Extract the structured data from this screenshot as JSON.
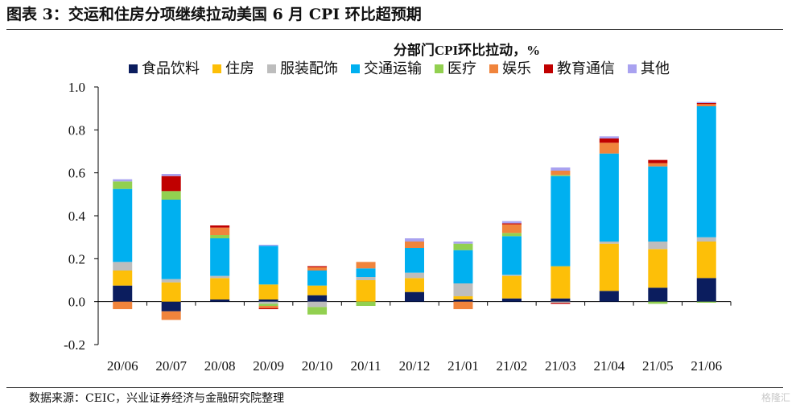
{
  "figure_title": "图表 3：交运和住房分项继续拉动美国 6 月 CPI 环比超预期",
  "source_note": "数据来源：CEIC，兴业证券经济与金融研究院整理",
  "watermark": "格隆汇",
  "chart_data": {
    "type": "bar",
    "stacked": true,
    "title": "分部门CPI环比拉动，%",
    "xlabel": "",
    "ylabel": "",
    "ylim": [
      -0.2,
      1.0
    ],
    "yticks": [
      "-0.2",
      "0.0",
      "0.2",
      "0.4",
      "0.6",
      "0.8",
      "1.0"
    ],
    "grid": false,
    "legend_position": "top",
    "categories": [
      "20/06",
      "20/07",
      "20/08",
      "20/09",
      "20/10",
      "20/11",
      "20/12",
      "21/01",
      "21/02",
      "21/03",
      "21/04",
      "21/05",
      "21/06"
    ],
    "series": [
      {
        "name": "食品饮料",
        "color": "#0b1d5e",
        "values": [
          0.075,
          -0.045,
          0.01,
          0.01,
          0.03,
          0.0,
          0.045,
          0.01,
          0.015,
          0.015,
          0.05,
          0.065,
          0.11
        ]
      },
      {
        "name": "住房",
        "color": "#fdbf08",
        "values": [
          0.07,
          0.09,
          0.1,
          0.07,
          0.045,
          0.1,
          0.065,
          0.015,
          0.105,
          0.15,
          0.22,
          0.18,
          0.17
        ]
      },
      {
        "name": "服装配饰",
        "color": "#bdbdbd",
        "values": [
          0.04,
          0.015,
          0.01,
          -0.01,
          -0.025,
          0.015,
          0.025,
          0.06,
          0.005,
          -0.005,
          0.01,
          0.035,
          0.02
        ]
      },
      {
        "name": "交通运输",
        "color": "#00b0f0",
        "values": [
          0.34,
          0.37,
          0.175,
          0.18,
          0.07,
          0.04,
          0.115,
          0.155,
          0.18,
          0.42,
          0.41,
          0.35,
          0.61
        ]
      },
      {
        "name": "医疗",
        "color": "#92d050",
        "values": [
          0.035,
          0.04,
          0.015,
          -0.01,
          -0.035,
          -0.02,
          0.0,
          0.03,
          0.015,
          0.005,
          0.0,
          -0.01,
          -0.005
        ]
      },
      {
        "name": "娱乐",
        "color": "#f0843c",
        "values": [
          -0.035,
          -0.04,
          0.035,
          -0.01,
          0.015,
          0.03,
          0.03,
          -0.035,
          0.04,
          0.02,
          0.05,
          0.015,
          0.01
        ]
      },
      {
        "name": "教育通信",
        "color": "#c00000",
        "values": [
          0.0,
          0.07,
          0.01,
          -0.005,
          0.005,
          0.0,
          0.0,
          0.0,
          0.005,
          -0.005,
          0.02,
          0.015,
          0.005
        ]
      },
      {
        "name": "其他",
        "color": "#a9a2f0",
        "values": [
          0.01,
          0.01,
          0.0,
          0.005,
          0.0,
          0.0,
          0.015,
          0.01,
          0.01,
          0.015,
          0.01,
          0.0,
          0.005
        ]
      }
    ]
  }
}
